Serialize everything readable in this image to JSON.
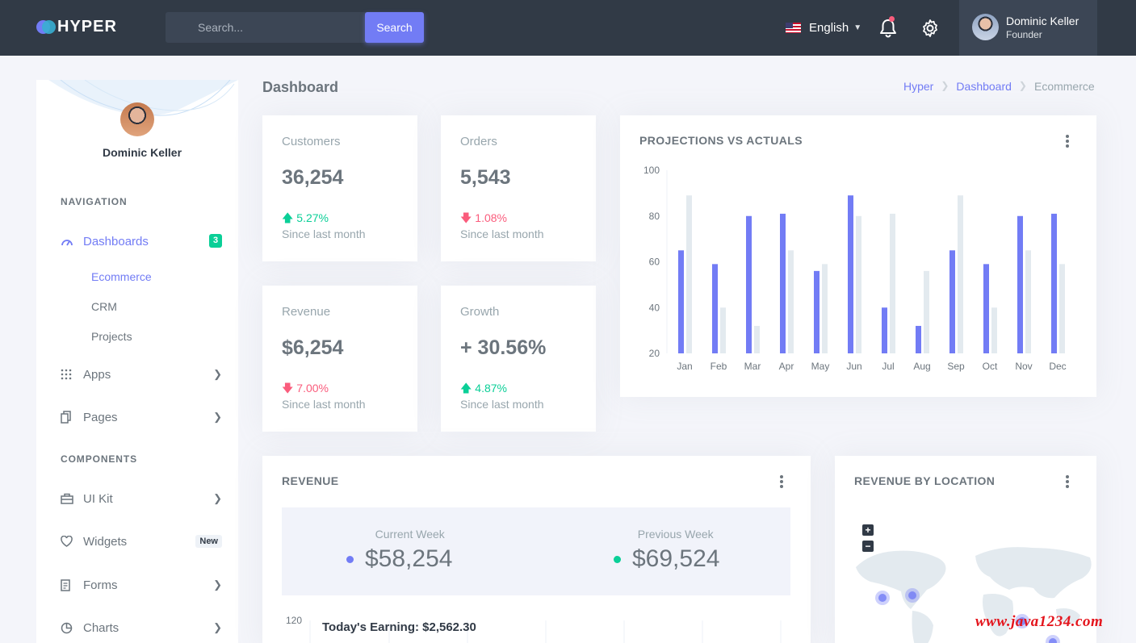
{
  "brand": {
    "name": "HYPER"
  },
  "topbar": {
    "search_placeholder": "Search...",
    "search_button": "Search",
    "language": "English",
    "user_name": "Dominic Keller",
    "user_role": "Founder"
  },
  "sidebar": {
    "user_name": "Dominic Keller",
    "nav_title": "NAVIGATION",
    "components_title": "COMPONENTS",
    "dashboards": {
      "label": "Dashboards",
      "badge": "3"
    },
    "sub_items": [
      "Ecommerce",
      "CRM",
      "Projects"
    ],
    "apps": "Apps",
    "pages": "Pages",
    "ui_kit": "UI Kit",
    "widgets": {
      "label": "Widgets",
      "badge": "New"
    },
    "forms": "Forms",
    "charts": "Charts"
  },
  "header": {
    "title": "Dashboard",
    "breadcrumb": [
      "Hyper",
      "Dashboard",
      "Ecommerce"
    ]
  },
  "stats": [
    {
      "label": "Customers",
      "value": "36,254",
      "change": "5.27%",
      "direction": "up",
      "since": "Since last month"
    },
    {
      "label": "Orders",
      "value": "5,543",
      "change": "1.08%",
      "direction": "down",
      "since": "Since last month"
    },
    {
      "label": "Revenue",
      "value": "$6,254",
      "change": "7.00%",
      "direction": "down",
      "since": "Since last month"
    },
    {
      "label": "Growth",
      "value": "+ 30.56%",
      "change": "4.87%",
      "direction": "up",
      "since": "Since last month"
    }
  ],
  "projections": {
    "title": "PROJECTIONS VS ACTUALS"
  },
  "revenue": {
    "title": "REVENUE",
    "current_label": "Current Week",
    "current_value": "$58,254",
    "previous_label": "Previous Week",
    "previous_value": "$69,524",
    "earning": "Today's Earning: $2,562.30",
    "y_top": "120"
  },
  "location": {
    "title": "REVENUE BY LOCATION",
    "zoom_in": "+",
    "zoom_out": "−"
  },
  "colors": {
    "primary": "#727cf5",
    "success": "#0acf97",
    "danger": "#fa5c7c",
    "topbar": "#313a46"
  },
  "watermark": "www.java1234.com",
  "chart_data": {
    "type": "bar",
    "categories": [
      "Jan",
      "Feb",
      "Mar",
      "Apr",
      "May",
      "Jun",
      "Jul",
      "Aug",
      "Sep",
      "Oct",
      "Nov",
      "Dec"
    ],
    "series": [
      {
        "values": [
          65,
          59,
          80,
          81,
          56,
          89,
          40,
          32,
          65,
          59,
          80,
          81
        ]
      },
      {
        "values": [
          89,
          40,
          32,
          65,
          59,
          80,
          81,
          56,
          89,
          40,
          65,
          59
        ]
      }
    ],
    "yticks": [
      20,
      40,
      60,
      80,
      100
    ],
    "ylim": [
      20,
      100
    ],
    "grid": false
  }
}
